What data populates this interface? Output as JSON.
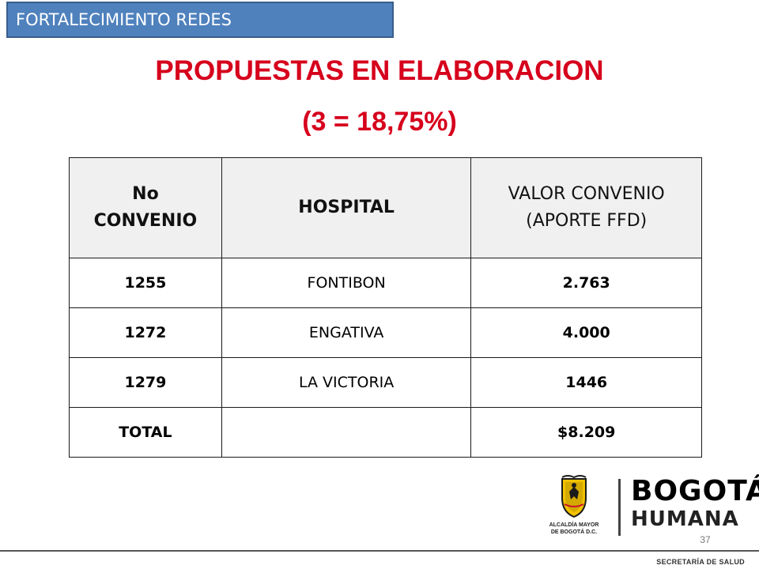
{
  "header": {
    "section_tag": "FORTALECIMIENTO REDES"
  },
  "title": {
    "main": "PROPUESTAS EN ELABORACION",
    "sub": "(3 = 18,75%)"
  },
  "table": {
    "headers": {
      "convenio_line1": "No",
      "convenio_line2": "CONVENIO",
      "hospital": "HOSPITAL",
      "valor_line1": "VALOR  CONVENIO",
      "valor_line2": "(APORTE FFD)"
    },
    "rows": [
      {
        "convenio": "1255",
        "hospital": "FONTIBON",
        "valor": "2.763"
      },
      {
        "convenio": "1272",
        "hospital": "ENGATIVA",
        "valor": "4.000"
      },
      {
        "convenio": "1279",
        "hospital": "LA VICTORIA",
        "valor": "1446"
      }
    ],
    "total": {
      "label": "TOTAL",
      "hospital": "",
      "valor": "$8.209"
    }
  },
  "logos": {
    "alcaldia_line1": "ALCALDÍA MAYOR",
    "alcaldia_line2": "DE BOGOTÁ D.C.",
    "brand_top": "BOGOTÁ",
    "brand_bottom": "HUMANA"
  },
  "colors": {
    "tag_bg": "#4f81bd",
    "title_red": "#d6001c",
    "header_fill": "#f0f0f0"
  },
  "page_number": "37",
  "footer": "SECRETARÍA DE SALUD"
}
